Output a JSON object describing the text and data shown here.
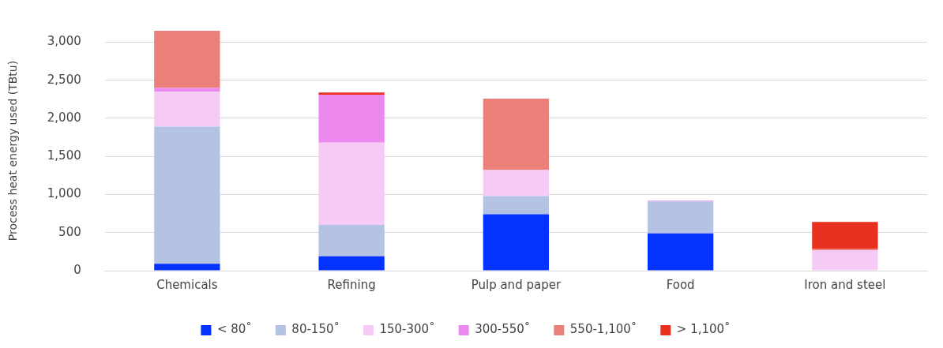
{
  "chart_data": {
    "type": "bar",
    "stacked": true,
    "ylabel": "Process heat energy used (TBtu)",
    "categories": [
      "Chemicals",
      "Refining",
      "Pulp and paper",
      "Food",
      "Iron and steel"
    ],
    "series": [
      {
        "name": "< 80˚",
        "color": "#0433ff",
        "values": [
          90,
          190,
          740,
          490,
          0
        ]
      },
      {
        "name": "80-150˚",
        "color": "#b4c3e3",
        "values": [
          1800,
          410,
          240,
          420,
          0
        ]
      },
      {
        "name": "150-300˚",
        "color": "#f5cbf5",
        "values": [
          460,
          1080,
          340,
          0,
          270
        ]
      },
      {
        "name": "300-550˚",
        "color": "#ec88ee",
        "values": [
          50,
          630,
          0,
          10,
          0
        ]
      },
      {
        "name": "550-1,100˚",
        "color": "#ea8079",
        "values": [
          750,
          0,
          940,
          0,
          20
        ]
      },
      {
        "name": "> 1,100˚",
        "color": "#e8321f",
        "values": [
          0,
          30,
          0,
          0,
          350
        ]
      }
    ],
    "ylim": [
      0,
      3150
    ],
    "yticks": [
      {
        "value": 0,
        "label": "0"
      },
      {
        "value": 500,
        "label": "500"
      },
      {
        "value": 1000,
        "label": "1,000"
      },
      {
        "value": 1500,
        "label": "1,500"
      },
      {
        "value": 2000,
        "label": "2,000"
      },
      {
        "value": 2500,
        "label": "2,500"
      },
      {
        "value": 3000,
        "label": "3,000"
      }
    ],
    "grid": "y",
    "legend": "bottom"
  }
}
